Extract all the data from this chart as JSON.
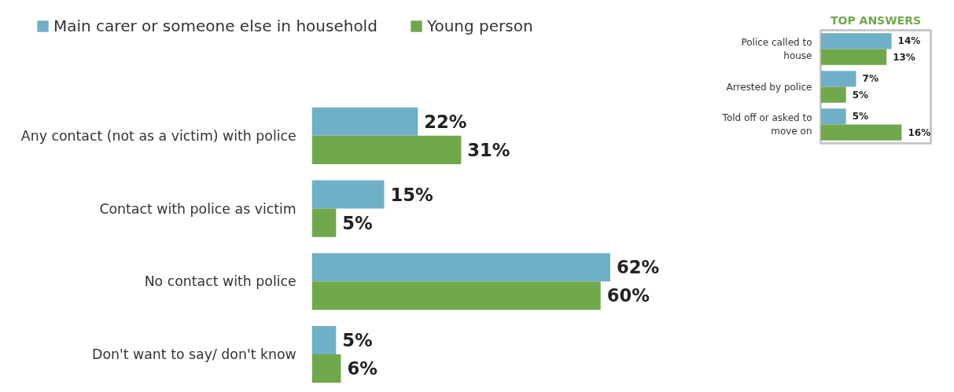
{
  "chart_data": [
    {
      "type": "bar",
      "orientation": "horizontal",
      "legend": "top left",
      "categories": [
        "Any contact (not as a victim) with police",
        "Contact with police as victim",
        "No contact with police",
        "Don't want to say/ don't know"
      ],
      "series": [
        {
          "name": "Main carer or someone else in household",
          "color": "#70afc8",
          "values": [
            22,
            15,
            62,
            5
          ],
          "value_labels": [
            "22%",
            "15%",
            "62%",
            "5%"
          ]
        },
        {
          "name": "Young person",
          "color": "#70a84c",
          "values": [
            31,
            5,
            60,
            6
          ],
          "value_labels": [
            "31%",
            "5%",
            "60%",
            "6%"
          ]
        }
      ]
    },
    {
      "type": "bar",
      "orientation": "horizontal",
      "title": "TOP ANSWERS",
      "categories": [
        "Police called to house",
        "Arrested by police",
        "Told off or asked to move on"
      ],
      "series": [
        {
          "color": "#70afc8",
          "values": [
            14,
            7,
            5
          ],
          "value_labels": [
            "14%",
            "7%",
            "5%"
          ]
        },
        {
          "color": "#70a84c",
          "values": [
            13,
            5,
            16
          ],
          "value_labels": [
            "13%",
            "5%",
            "16%"
          ]
        }
      ]
    }
  ]
}
